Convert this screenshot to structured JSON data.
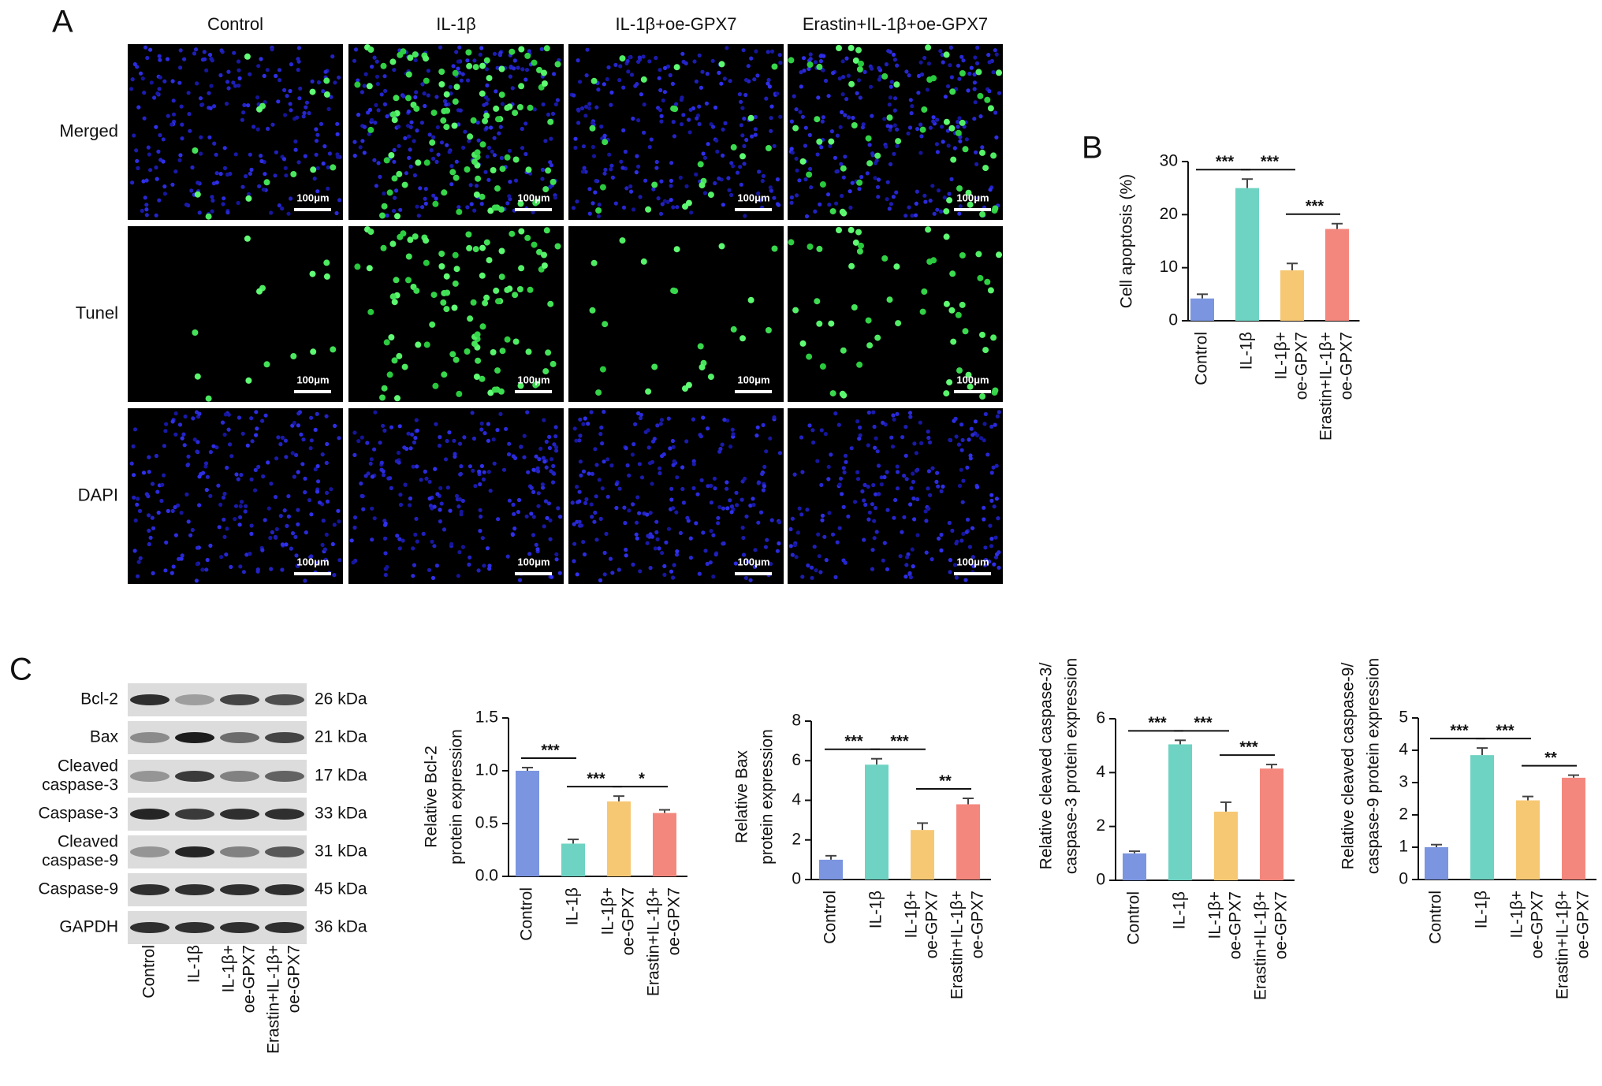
{
  "panel_labels": [
    "A",
    "B",
    "C"
  ],
  "microscopy": {
    "columns": [
      "Control",
      "IL-1β",
      "IL-1β+oe-GPX7",
      "Erastin+IL-1β+oe-GPX7"
    ],
    "rows": [
      "Merged",
      "Tunel",
      "DAPI"
    ],
    "scale_bar": "100μm"
  },
  "western_blot": {
    "rows": [
      {
        "label": [
          "Bcl-2"
        ],
        "size": "26 kDa"
      },
      {
        "label": [
          "Bax"
        ],
        "size": "21 kDa"
      },
      {
        "label": [
          "Cleaved",
          "caspase-3"
        ],
        "size": "17 kDa"
      },
      {
        "label": [
          "Caspase-3"
        ],
        "size": "33 kDa"
      },
      {
        "label": [
          "Cleaved",
          "caspase-9"
        ],
        "size": "31 kDa"
      },
      {
        "label": [
          "Caspase-9"
        ],
        "size": "45 kDa"
      },
      {
        "label": [
          "GAPDH"
        ],
        "size": "36 kDa"
      }
    ],
    "lanes": [
      [
        "Control"
      ],
      [
        "IL-1β"
      ],
      [
        "IL-1β+",
        "oe-GPX7"
      ],
      [
        "Erastin+IL-1β+",
        "oe-GPX7"
      ]
    ]
  },
  "chart_data": [
    {
      "type": "bar",
      "y_label": [
        "Cell apoptosis (%)"
      ],
      "categories": [
        [
          "Control"
        ],
        [
          "IL-1β"
        ],
        [
          "IL-1β+",
          "oe-GPX7"
        ],
        [
          "Erastin+IL-1β+",
          "oe-GPX7"
        ]
      ],
      "values": [
        4.2,
        25,
        9.5,
        17.3
      ],
      "errors": [
        0.8,
        1.7,
        1.3,
        1.0
      ],
      "colors": [
        "#7b95e0",
        "#6ed3c3",
        "#f7c873",
        "#f4877d"
      ],
      "ylim": [
        0,
        30
      ],
      "yticks": [
        0,
        10,
        20,
        30
      ],
      "significance": [
        {
          "label": "***",
          "between": [
            0,
            1
          ]
        },
        {
          "label": "***",
          "between": [
            1,
            2
          ]
        },
        {
          "label": "***",
          "between": [
            2,
            3
          ]
        }
      ]
    },
    {
      "type": "bar",
      "y_label": [
        "Relative Bcl-2",
        "protein expression"
      ],
      "categories": [
        [
          "Control"
        ],
        [
          "IL-1β"
        ],
        [
          "IL-1β+",
          "oe-GPX7"
        ],
        [
          "Erastin+IL-1β+",
          "oe-GPX7"
        ]
      ],
      "values": [
        1.0,
        0.31,
        0.71,
        0.6
      ],
      "errors": [
        0.03,
        0.04,
        0.05,
        0.03
      ],
      "colors": [
        "#7b95e0",
        "#6ed3c3",
        "#f7c873",
        "#f4877d"
      ],
      "ylim": [
        0,
        1.5
      ],
      "yticks": [
        {
          "value": 0,
          "label": "0.0"
        },
        0.5,
        {
          "value": 1,
          "label": "1.0"
        },
        1.5
      ],
      "significance": [
        {
          "label": "***",
          "between": [
            0,
            1
          ]
        },
        {
          "label": "***",
          "between": [
            1,
            2
          ]
        },
        {
          "label": "*",
          "between": [
            2,
            3
          ]
        }
      ]
    },
    {
      "type": "bar",
      "y_label": [
        "Relative Bax",
        "protein expression"
      ],
      "categories": [
        [
          "Control"
        ],
        [
          "IL-1β"
        ],
        [
          "IL-1β+",
          "oe-GPX7"
        ],
        [
          "Erastin+IL-1β+",
          "oe-GPX7"
        ]
      ],
      "values": [
        1.0,
        5.8,
        2.5,
        3.8
      ],
      "errors": [
        0.2,
        0.3,
        0.35,
        0.3
      ],
      "colors": [
        "#7b95e0",
        "#6ed3c3",
        "#f7c873",
        "#f4877d"
      ],
      "ylim": [
        0,
        8
      ],
      "yticks": [
        0,
        2,
        4,
        6,
        8
      ],
      "significance": [
        {
          "label": "***",
          "between": [
            0,
            1
          ]
        },
        {
          "label": "***",
          "between": [
            1,
            2
          ]
        },
        {
          "label": "**",
          "between": [
            2,
            3
          ]
        }
      ]
    },
    {
      "type": "bar",
      "y_label": [
        "Relative cleaved caspase-3/",
        "caspase-3 protein expression"
      ],
      "categories": [
        [
          "Control"
        ],
        [
          "IL-1β"
        ],
        [
          "IL-1β+",
          "oe-GPX7"
        ],
        [
          "Erastin+IL-1β+",
          "oe-GPX7"
        ]
      ],
      "values": [
        1.0,
        5.05,
        2.55,
        4.15
      ],
      "errors": [
        0.08,
        0.15,
        0.35,
        0.15
      ],
      "colors": [
        "#7b95e0",
        "#6ed3c3",
        "#f7c873",
        "#f4877d"
      ],
      "ylim": [
        0,
        6
      ],
      "yticks": [
        0,
        2,
        4,
        6
      ],
      "significance": [
        {
          "label": "***",
          "between": [
            0,
            1
          ]
        },
        {
          "label": "***",
          "between": [
            1,
            2
          ]
        },
        {
          "label": "***",
          "between": [
            2,
            3
          ]
        }
      ]
    },
    {
      "type": "bar",
      "y_label": [
        "Relative cleaved caspase-9/",
        "caspase-9 protein expression"
      ],
      "categories": [
        [
          "Control"
        ],
        [
          "IL-1β"
        ],
        [
          "IL-1β+",
          "oe-GPX7"
        ],
        [
          "Erastin+IL-1β+",
          "oe-GPX7"
        ]
      ],
      "values": [
        1.0,
        3.85,
        2.45,
        3.15
      ],
      "errors": [
        0.08,
        0.22,
        0.12,
        0.08
      ],
      "colors": [
        "#7b95e0",
        "#6ed3c3",
        "#f7c873",
        "#f4877d"
      ],
      "ylim": [
        0,
        5
      ],
      "yticks": [
        0,
        1,
        2,
        3,
        4,
        5
      ],
      "significance": [
        {
          "label": "***",
          "between": [
            0,
            1
          ]
        },
        {
          "label": "***",
          "between": [
            1,
            2
          ]
        },
        {
          "label": "**",
          "between": [
            2,
            3
          ]
        }
      ]
    }
  ]
}
